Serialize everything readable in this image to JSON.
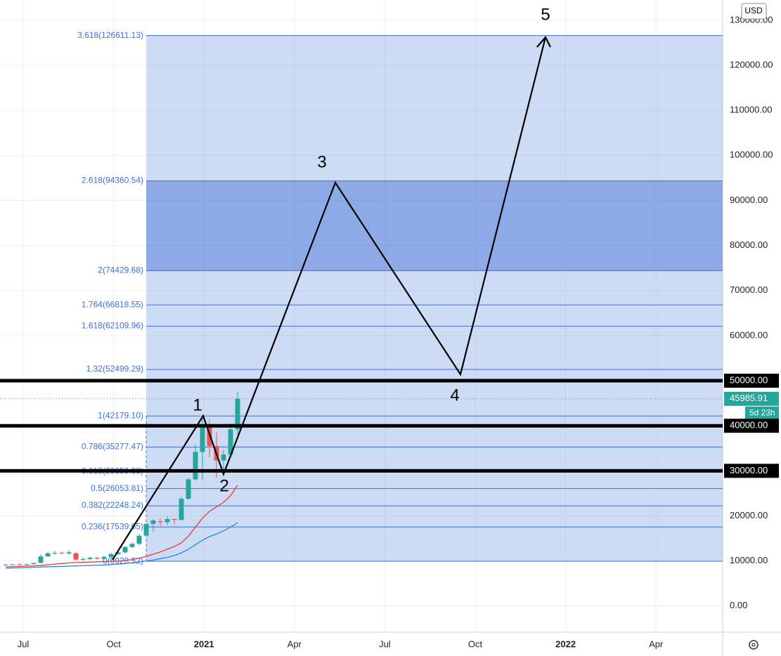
{
  "chart_data": {
    "type": "candlestick",
    "currency": "USD",
    "ylim": [
      -5800,
      134500
    ],
    "yticks": [
      {
        "value": 0,
        "label": "0.00"
      },
      {
        "value": 10000,
        "label": "10000.00"
      },
      {
        "value": 20000,
        "label": "20000.00"
      },
      {
        "value": 30000,
        "label": "30000.00"
      },
      {
        "value": 40000,
        "label": "40000.00"
      },
      {
        "value": 50000,
        "label": "50000.00"
      },
      {
        "value": 60000,
        "label": "60000.00"
      },
      {
        "value": 70000,
        "label": "70000.00"
      },
      {
        "value": 80000,
        "label": "80000.00"
      },
      {
        "value": 90000,
        "label": "90000.00"
      },
      {
        "value": 100000,
        "label": "100000.00"
      },
      {
        "value": 110000,
        "label": "110000.00"
      },
      {
        "value": 120000,
        "label": "120000.00"
      },
      {
        "value": 130000,
        "label": "130000.00"
      }
    ],
    "x_labels": [
      "Jul",
      "Oct",
      "2021",
      "Apr",
      "Jul",
      "Oct",
      "2022",
      "Apr"
    ],
    "grid": true,
    "up_color": "#26a69a",
    "down_color": "#ef5350",
    "open": [
      9150,
      9200,
      9250,
      9150,
      9300,
      9550,
      11000,
      11700,
      11800,
      11650,
      11700,
      10300,
      10400,
      10700,
      10500,
      10900,
      11500,
      11900,
      13100,
      13800,
      15600,
      18200,
      18800,
      18600,
      19300,
      19100,
      23800,
      28100,
      34200,
      40000,
      35500,
      32300,
      33600,
      39200
    ],
    "high": [
      9300,
      9350,
      9500,
      9400,
      9600,
      11500,
      12000,
      12200,
      12100,
      12400,
      12000,
      10800,
      11000,
      10900,
      11200,
      11800,
      12000,
      13300,
      14100,
      16000,
      18400,
      19300,
      19500,
      19900,
      19500,
      24300,
      28400,
      35900,
      41900,
      41500,
      38500,
      34700,
      40500,
      47500
    ],
    "low": [
      9000,
      9100,
      9100,
      9050,
      9200,
      9500,
      10900,
      11300,
      11500,
      11400,
      10000,
      10000,
      10200,
      10300,
      10200,
      10600,
      11300,
      11700,
      12900,
      13500,
      15200,
      16500,
      17800,
      18000,
      18000,
      19000,
      23600,
      27800,
      28000,
      33000,
      28500,
      29300,
      33000,
      38000
    ],
    "close": [
      9200,
      9250,
      9150,
      9300,
      9550,
      11000,
      11700,
      11800,
      11650,
      11900,
      10300,
      10400,
      10700,
      10500,
      10900,
      11500,
      11900,
      13100,
      13800,
      15600,
      18200,
      19000,
      18600,
      19300,
      19100,
      23800,
      28100,
      34200,
      40000,
      35500,
      32300,
      33600,
      39200,
      45985.91
    ],
    "ma": [
      {
        "color": "#e53935",
        "values": [
          8700,
          8750,
          8800,
          8850,
          8900,
          9000,
          9150,
          9300,
          9450,
          9550,
          9650,
          9700,
          9750,
          9800,
          9850,
          9900,
          9950,
          10100,
          10300,
          10600,
          11000,
          11500,
          12000,
          12600,
          13200,
          14000,
          15500,
          17500,
          19500,
          21000,
          22000,
          23000,
          24500,
          26800
        ]
      },
      {
        "color": "#1e88e5",
        "values": [
          8400,
          8450,
          8500,
          8550,
          8600,
          8650,
          8700,
          8750,
          8800,
          8850,
          8900,
          8950,
          9000,
          9050,
          9100,
          9200,
          9300,
          9400,
          9600,
          9800,
          10000,
          10200,
          10500,
          10800,
          11200,
          11800,
          12600,
          13600,
          14600,
          15400,
          16000,
          16700,
          17500,
          18500
        ]
      }
    ],
    "fib": {
      "color": "#3d6fd6",
      "zone": [
        2,
        3
      ],
      "levels": [
        {
          "value": 126611.13,
          "label": "3.618(126611.13)"
        },
        {
          "value": 94360.54,
          "label": "2.618(94360.54)"
        },
        {
          "value": 74429.68,
          "label": "2(74429.68)"
        },
        {
          "value": 66818.55,
          "label": "1.764(66818.55)"
        },
        {
          "value": 62109.96,
          "label": "1.618(62109.96)"
        },
        {
          "value": 52499.29,
          "label": "1.32(52499.29)"
        },
        {
          "value": 42179.1,
          "label": "1(42179.10)"
        },
        {
          "value": 35277.47,
          "label": "0.786(35277.47)"
        },
        {
          "value": 29859.38,
          "label": "0.618(29859.38)"
        },
        {
          "value": 26053.81,
          "label": "0.5(26053.81)"
        },
        {
          "value": 22248.24,
          "label": "0.382(22248.24)"
        },
        {
          "value": 17539.65,
          "label": "0.236(17539.65)"
        },
        {
          "value": 9928.52,
          "label": "0(9928.52)"
        }
      ]
    },
    "levels": [
      {
        "value": 50000,
        "label": "50000.00"
      },
      {
        "value": 40000,
        "label": "40000.00"
      },
      {
        "value": 30000,
        "label": "30000.00"
      }
    ],
    "last_price": 45985.91,
    "countdown": "5d 23h",
    "wave_labels": [
      "1",
      "2",
      "3",
      "4",
      "5"
    ]
  }
}
